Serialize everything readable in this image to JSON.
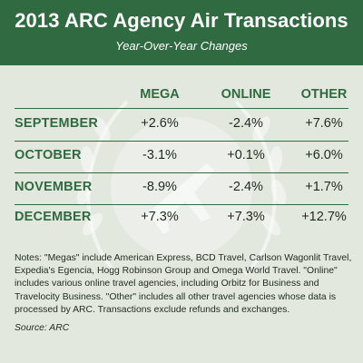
{
  "title": "2013 ARC Agency Air Transactions",
  "subtitle": "Year-Over-Year Changes",
  "colors": {
    "header_bg": "#2f6a40",
    "accent_text": "#2f6a40",
    "background": "#e3e8df",
    "body_text": "#1e2a20"
  },
  "chart_data": {
    "type": "table",
    "title": "2013 ARC Agency Air Transactions",
    "subtitle": "Year-Over-Year Changes",
    "columns": [
      "MEGA",
      "ONLINE",
      "OTHER"
    ],
    "rows": [
      {
        "label": "SEPTEMBER",
        "values": [
          "+2.6%",
          "-2.4%",
          "+7.6%"
        ]
      },
      {
        "label": "OCTOBER",
        "values": [
          "-3.1%",
          "+0.1%",
          "+6.0%"
        ]
      },
      {
        "label": "NOVEMBER",
        "values": [
          "-8.9%",
          "-2.4%",
          "+1.7%"
        ]
      },
      {
        "label": "DECEMBER",
        "values": [
          "+7.3%",
          "+7.3%",
          "+12.7%"
        ]
      }
    ]
  },
  "notes": "Notes: \"Megas\" include American Express, BCD Travel, Carlson Wagonlit Travel, Expedia's Egencia, Hogg Robinson Group and Omega World Travel. \"Online\" includes various online travel agencies, including Orbitz for Business and Travelocity Business. \"Other\" includes all other travel agencies whose data is processed by ARC. Transactions exclude refunds and exchanges.",
  "source": "Source: ARC",
  "watermark_icon": "laurel-wreath-airplane-icon"
}
